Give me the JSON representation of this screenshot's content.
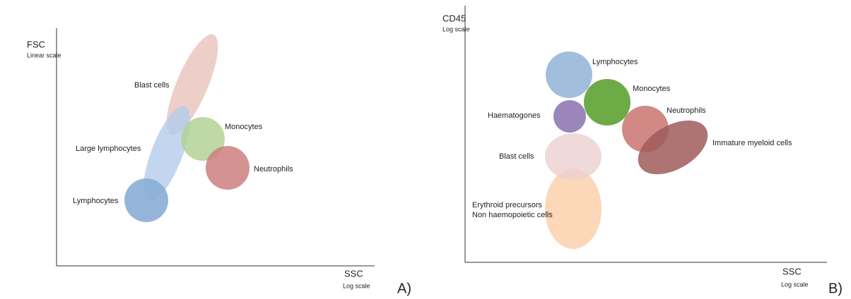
{
  "panels": [
    {
      "label": "A)",
      "y_axis": {
        "title": "FSC",
        "scale": "Linear scale"
      },
      "x_axis": {
        "title": "SSC",
        "scale": "Log scale"
      },
      "populations": [
        {
          "lines": [
            "Blast cells"
          ]
        },
        {
          "lines": [
            "Large lymphocytes"
          ]
        },
        {
          "lines": [
            "Monocytes"
          ]
        },
        {
          "lines": [
            "Neutrophils"
          ]
        },
        {
          "lines": [
            "Lymphocytes"
          ]
        }
      ]
    },
    {
      "label": "B)",
      "y_axis": {
        "title": "CD45",
        "scale": "Log scale"
      },
      "x_axis": {
        "title": "SSC",
        "scale": "Log scale"
      },
      "populations": [
        {
          "lines": [
            "Lymphocytes"
          ]
        },
        {
          "lines": [
            "Monocytes"
          ]
        },
        {
          "lines": [
            "Haematogones"
          ]
        },
        {
          "lines": [
            "Neutrophils"
          ]
        },
        {
          "lines": [
            "Immature myeloid cells"
          ]
        },
        {
          "lines": [
            "Blast cells"
          ]
        },
        {
          "lines": [
            "Erythroid precursors",
            "Non haemopoietic cells"
          ]
        }
      ]
    }
  ]
}
